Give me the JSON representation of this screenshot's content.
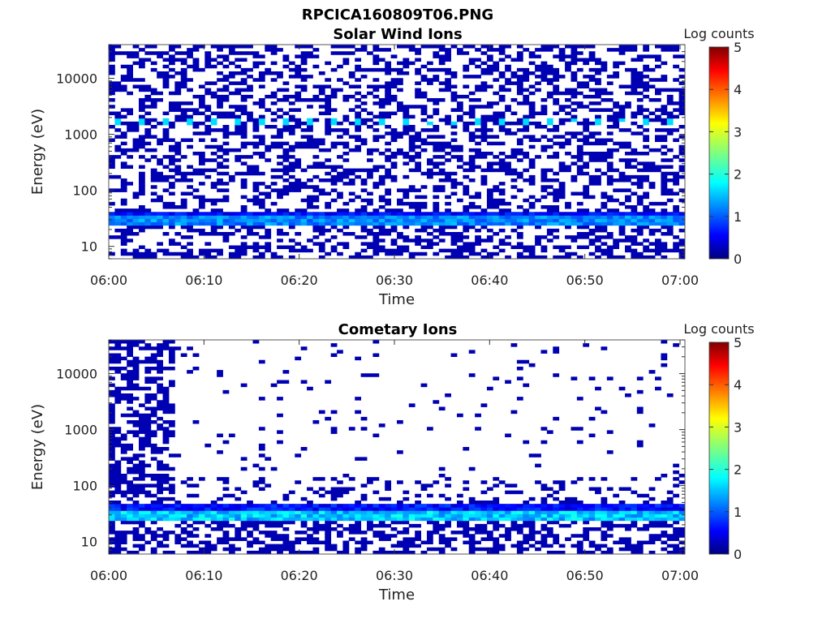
{
  "figure_title": "RPCICA160809T06.PNG",
  "colorbar": {
    "label": "Log counts",
    "ticks": [
      "0",
      "1",
      "2",
      "3",
      "4",
      "5"
    ]
  },
  "chart_data": [
    {
      "type": "heatmap",
      "title": "Solar Wind Ions",
      "xlabel": "Time",
      "ylabel": "Energy (eV)",
      "x_ticks": [
        "06:00",
        "06:10",
        "06:20",
        "06:30",
        "06:40",
        "06:50",
        "07:00"
      ],
      "y_ticks": [
        "10",
        "100",
        "1000",
        "10000"
      ],
      "x_range": [
        "06:00",
        "07:00"
      ],
      "y_range": [
        6,
        40000
      ],
      "y_scale": "log",
      "color_scale": "jet",
      "color_range": [
        0,
        5
      ],
      "bands": [
        {
          "energy_eV": 30,
          "log_counts": 1.6
        },
        {
          "energy_eV": 38,
          "log_counts": 0.9
        },
        {
          "energy_eV": 1600,
          "log_counts": 1.7,
          "pattern": "periodic"
        }
      ]
    },
    {
      "type": "heatmap",
      "title": "Cometary Ions",
      "xlabel": "Time",
      "ylabel": "Energy (eV)",
      "x_ticks": [
        "06:00",
        "06:10",
        "06:20",
        "06:30",
        "06:40",
        "06:50",
        "07:00"
      ],
      "y_ticks": [
        "10",
        "100",
        "1000",
        "10000"
      ],
      "x_range": [
        "06:00",
        "07:00"
      ],
      "y_range": [
        6,
        40000
      ],
      "y_scale": "log",
      "color_scale": "jet",
      "color_range": [
        0,
        5
      ],
      "bands": [
        {
          "energy_eV": 28,
          "log_counts": 2.0
        },
        {
          "energy_eV": 40,
          "log_counts": 1.0
        }
      ]
    }
  ]
}
